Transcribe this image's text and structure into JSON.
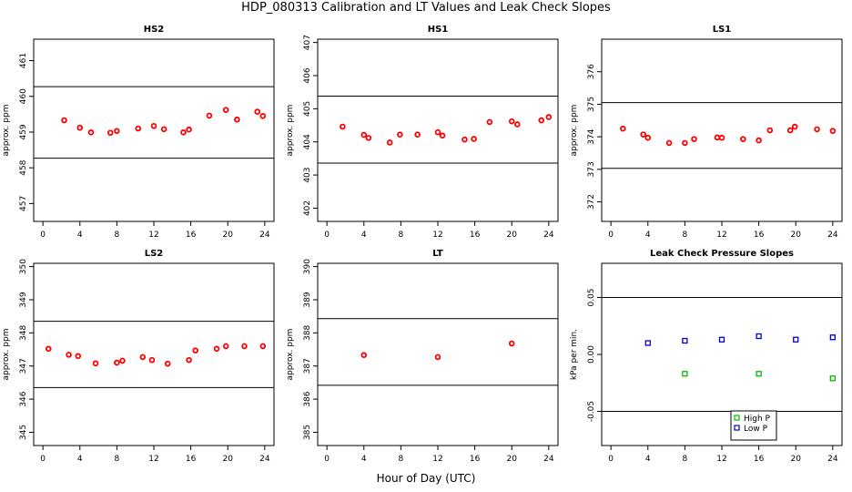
{
  "figure": {
    "title": "HDP_080313  Calibration and LT Values and Leak Check Slopes",
    "xlabel": "Hour of Day (UTC)"
  },
  "chart_data": [
    {
      "type": "scatter",
      "title": "HS2",
      "xlabel": "",
      "ylabel": "approx. ppm",
      "xlim": [
        -1,
        25
      ],
      "ylim": [
        456.5,
        461.6
      ],
      "xticks": [
        0,
        4,
        8,
        12,
        16,
        20,
        24
      ],
      "yticks": [
        457,
        458,
        459,
        460,
        461
      ],
      "hlines": [
        460.27,
        458.27
      ],
      "point_color": "#ff0000",
      "series": [
        {
          "x": [
            2.3,
            4.0,
            5.2,
            7.3,
            8.0,
            10.3,
            12.0,
            13.1,
            15.2,
            15.8,
            18.0,
            19.8,
            21.0,
            23.2,
            23.8
          ],
          "y": [
            459.33,
            459.12,
            458.99,
            458.98,
            459.03,
            459.1,
            459.17,
            459.08,
            458.99,
            459.07,
            459.46,
            459.62,
            459.35,
            459.57,
            459.45
          ]
        }
      ]
    },
    {
      "type": "scatter",
      "title": "HS1",
      "xlabel": "",
      "ylabel": "approx. ppm",
      "xlim": [
        -1,
        25
      ],
      "ylim": [
        401.6,
        407.1
      ],
      "xticks": [
        0,
        4,
        8,
        12,
        16,
        20,
        24
      ],
      "yticks": [
        402,
        403,
        404,
        405,
        406,
        407
      ],
      "hlines": [
        405.38,
        403.36
      ],
      "point_color": "#ff0000",
      "series": [
        {
          "x": [
            1.7,
            4.0,
            4.5,
            6.8,
            7.9,
            9.8,
            12.0,
            12.5,
            14.9,
            15.9,
            17.6,
            20.0,
            20.6,
            23.2,
            24.0
          ],
          "y": [
            404.46,
            404.21,
            404.12,
            403.98,
            404.22,
            404.22,
            404.29,
            404.19,
            404.07,
            404.09,
            404.6,
            404.62,
            404.53,
            404.65,
            404.75
          ]
        }
      ]
    },
    {
      "type": "scatter",
      "title": "LS1",
      "xlabel": "",
      "ylabel": "approx. ppm",
      "xlim": [
        -1,
        25
      ],
      "ylim": [
        371.4,
        377.0
      ],
      "xticks": [
        0,
        4,
        8,
        12,
        16,
        20,
        24
      ],
      "yticks": [
        372,
        373,
        374,
        375,
        376
      ],
      "hlines": [
        375.05,
        373.03
      ],
      "point_color": "#ff0000",
      "series": [
        {
          "x": [
            1.3,
            3.5,
            4.0,
            6.3,
            8.0,
            9.0,
            11.5,
            12.0,
            14.3,
            16.0,
            17.2,
            19.4,
            19.9,
            22.3,
            24.0
          ],
          "y": [
            374.25,
            374.07,
            373.97,
            373.81,
            373.81,
            373.93,
            373.98,
            373.97,
            373.93,
            373.89,
            374.2,
            374.2,
            374.31,
            374.23,
            374.18
          ]
        }
      ]
    },
    {
      "type": "scatter",
      "title": "LS2",
      "xlabel": "",
      "ylabel": "approx. ppm",
      "xlim": [
        -1,
        25
      ],
      "ylim": [
        344.6,
        350.1
      ],
      "xticks": [
        0,
        4,
        8,
        12,
        16,
        20,
        24
      ],
      "yticks": [
        345,
        346,
        347,
        348,
        349,
        350
      ],
      "hlines": [
        348.35,
        346.35
      ],
      "point_color": "#ff0000",
      "series": [
        {
          "x": [
            0.6,
            2.8,
            3.8,
            5.7,
            8.0,
            8.6,
            10.8,
            11.8,
            13.5,
            15.8,
            16.5,
            18.8,
            19.8,
            21.8,
            23.8
          ],
          "y": [
            347.52,
            347.34,
            347.3,
            347.08,
            347.1,
            347.16,
            347.27,
            347.18,
            347.07,
            347.18,
            347.47,
            347.52,
            347.6,
            347.6,
            347.6
          ]
        }
      ]
    },
    {
      "type": "scatter",
      "title": "LT",
      "xlabel": "",
      "ylabel": "approx. ppm",
      "xlim": [
        -1,
        25
      ],
      "ylim": [
        384.6,
        390.1
      ],
      "xticks": [
        0,
        4,
        8,
        12,
        16,
        20,
        24
      ],
      "yticks": [
        385,
        386,
        387,
        388,
        389,
        390
      ],
      "hlines": [
        388.43,
        386.42
      ],
      "point_color": "#ff0000",
      "series": [
        {
          "x": [
            4.0,
            12.0,
            20.0
          ],
          "y": [
            387.33,
            387.27,
            387.68
          ]
        }
      ]
    },
    {
      "type": "scatter",
      "title": "Leak Check Pressure Slopes",
      "xlabel": "",
      "ylabel": "kPa per min.",
      "xlim": [
        -1,
        25
      ],
      "ylim": [
        -0.08,
        0.08
      ],
      "xticks": [
        0,
        4,
        8,
        12,
        16,
        20,
        24
      ],
      "yticks": [
        -0.05,
        0.0,
        0.05
      ],
      "ytick_labels": [
        "-0.05",
        "0.00",
        "0.05"
      ],
      "hlines": [
        0.05,
        -0.05
      ],
      "legend": "bottom-right",
      "series": [
        {
          "name": "High P",
          "color": "#00bb00",
          "x": [
            8,
            16,
            24
          ],
          "y": [
            -0.017,
            -0.017,
            -0.021
          ]
        },
        {
          "name": "Low P",
          "color": "#0000cc",
          "x": [
            4,
            8,
            12,
            16,
            20,
            24
          ],
          "y": [
            0.01,
            0.012,
            0.013,
            0.016,
            0.013,
            0.015
          ]
        }
      ]
    }
  ]
}
